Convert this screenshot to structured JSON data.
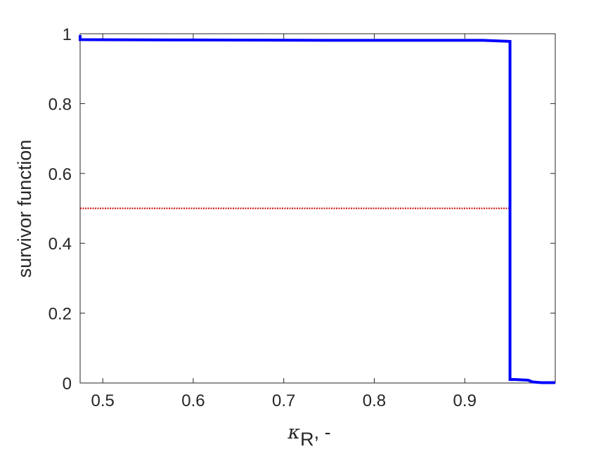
{
  "chart_data": {
    "type": "line",
    "title": "",
    "xlabel_symbol": "κ",
    "xlabel_subscript": "R",
    "xlabel_suffix": ", -",
    "ylabel": "survivor function",
    "xlim": [
      0.475,
      1.0
    ],
    "ylim": [
      0,
      1
    ],
    "xticks": [
      0.5,
      0.6,
      0.7,
      0.8,
      0.9
    ],
    "xtick_labels": [
      "0.5",
      "0.6",
      "0.7",
      "0.8",
      "0.9"
    ],
    "yticks": [
      0,
      0.2,
      0.4,
      0.6,
      0.8,
      1
    ],
    "ytick_labels": [
      "0",
      "0.2",
      "0.4",
      "0.6",
      "0.8",
      "1"
    ],
    "grid": false,
    "series": [
      {
        "color": "#0000ff",
        "style": "solid",
        "x": [
          0.475,
          0.475,
          0.6,
          0.75,
          0.92,
          0.95,
          0.95,
          0.955,
          0.97,
          0.975,
          0.985,
          1.0
        ],
        "y": [
          0.996,
          0.983,
          0.982,
          0.981,
          0.981,
          0.978,
          0.01,
          0.01,
          0.008,
          0.003,
          0.001,
          0.001
        ]
      },
      {
        "color": "#cc0000",
        "style": "dotted",
        "x": [
          0.475,
          0.95
        ],
        "y": [
          0.5,
          0.5
        ]
      }
    ]
  }
}
